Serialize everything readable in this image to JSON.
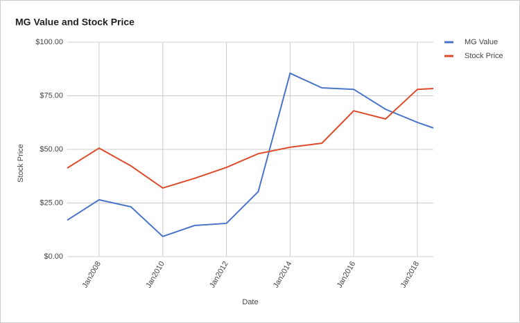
{
  "chart_data": {
    "type": "line",
    "title": "MG Value and Stock Price",
    "x_label": "Date",
    "y_label": "Stock Price",
    "x": [
      "2007-01",
      "2008-01",
      "2009-01",
      "2010-01",
      "2011-01",
      "2012-01",
      "2013-01",
      "2014-01",
      "2015-01",
      "2016-01",
      "2017-01",
      "2018-01",
      "2018-07"
    ],
    "series": [
      {
        "name": "MG Value",
        "color": "#4a74c9",
        "values": [
          17,
          26.5,
          23.2,
          9.4,
          14.5,
          15.5,
          30.3,
          85.5,
          78.7,
          78,
          68.7,
          62.6,
          60
        ]
      },
      {
        "name": "Stock Price",
        "color": "#dd4b2a",
        "values": [
          41.3,
          50.6,
          42.3,
          32,
          36.5,
          41.6,
          48,
          51,
          52.9,
          68,
          64.2,
          78,
          78.4
        ]
      }
    ],
    "xlim": [
      "2007-01",
      "2018-07"
    ],
    "xticks": [
      {
        "value": "2008-01",
        "label": "Jan2008"
      },
      {
        "value": "2010-01",
        "label": "Jan2010"
      },
      {
        "value": "2012-01",
        "label": "Jan2012"
      },
      {
        "value": "2014-01",
        "label": "Jan2014"
      },
      {
        "value": "2016-01",
        "label": "Jan2016"
      },
      {
        "value": "2018-01",
        "label": "Jan2018"
      }
    ],
    "ylim": [
      0,
      100
    ],
    "yticks": [
      {
        "value": 0,
        "label": "$0.00"
      },
      {
        "value": 25,
        "label": "$25.00"
      },
      {
        "value": 50,
        "label": "$50.00"
      },
      {
        "value": 75,
        "label": "$75.00"
      },
      {
        "value": 100,
        "label": "$100.00"
      }
    ],
    "grid": true,
    "legend": "right"
  }
}
